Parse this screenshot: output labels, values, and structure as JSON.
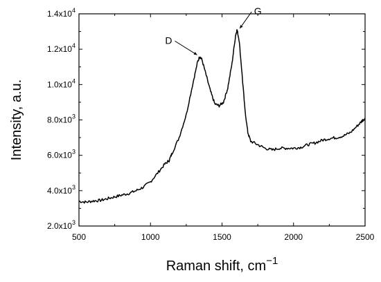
{
  "chart_data": {
    "type": "line",
    "title": "",
    "xlabel": "Raman shift, cm",
    "xlabel_superscript": "−1",
    "ylabel": "Intensity, a.u.",
    "xlim": [
      500,
      2500
    ],
    "ylim": [
      2000,
      14000
    ],
    "grid": false,
    "x_ticks": [
      500,
      1000,
      1500,
      2000,
      2500
    ],
    "x_tick_labels": [
      "500",
      "1000",
      "1500",
      "2000",
      "2500"
    ],
    "y_ticks": [
      2000,
      4000,
      6000,
      8000,
      10000,
      12000,
      14000
    ],
    "y_tick_labels": [
      {
        "mantissa": "2.0x10",
        "exp": "3"
      },
      {
        "mantissa": "4.0x10",
        "exp": "3"
      },
      {
        "mantissa": "6.0x10",
        "exp": "3"
      },
      {
        "mantissa": "8.0x10",
        "exp": "3"
      },
      {
        "mantissa": "1.0x10",
        "exp": "4"
      },
      {
        "mantissa": "1.2x10",
        "exp": "4"
      },
      {
        "mantissa": "1.4x10",
        "exp": "4"
      }
    ],
    "series": [
      {
        "color": "#000000",
        "points": [
          [
            500,
            3400
          ],
          [
            550,
            3350
          ],
          [
            600,
            3420
          ],
          [
            650,
            3450
          ],
          [
            700,
            3550
          ],
          [
            750,
            3650
          ],
          [
            800,
            3750
          ],
          [
            850,
            3850
          ],
          [
            900,
            4000
          ],
          [
            950,
            4200
          ],
          [
            1000,
            4500
          ],
          [
            1050,
            5000
          ],
          [
            1100,
            5500
          ],
          [
            1130,
            5700
          ],
          [
            1150,
            6100
          ],
          [
            1200,
            7000
          ],
          [
            1250,
            8300
          ],
          [
            1300,
            10200
          ],
          [
            1330,
            11300
          ],
          [
            1345,
            11600
          ],
          [
            1360,
            11400
          ],
          [
            1390,
            10500
          ],
          [
            1420,
            9600
          ],
          [
            1450,
            8900
          ],
          [
            1480,
            8800
          ],
          [
            1510,
            9000
          ],
          [
            1540,
            9800
          ],
          [
            1570,
            11200
          ],
          [
            1595,
            12800
          ],
          [
            1605,
            13100
          ],
          [
            1620,
            12500
          ],
          [
            1640,
            10600
          ],
          [
            1660,
            8600
          ],
          [
            1680,
            7300
          ],
          [
            1700,
            6800
          ],
          [
            1750,
            6600
          ],
          [
            1800,
            6400
          ],
          [
            1850,
            6300
          ],
          [
            1900,
            6400
          ],
          [
            1950,
            6400
          ],
          [
            2000,
            6400
          ],
          [
            2050,
            6450
          ],
          [
            2100,
            6600
          ],
          [
            2150,
            6700
          ],
          [
            2200,
            6850
          ],
          [
            2250,
            6950
          ],
          [
            2300,
            7000
          ],
          [
            2350,
            7100
          ],
          [
            2400,
            7300
          ],
          [
            2450,
            7700
          ],
          [
            2480,
            7950
          ],
          [
            2500,
            8100
          ]
        ]
      }
    ],
    "annotations": [
      {
        "label": "D",
        "x": 1345,
        "y": 11600
      },
      {
        "label": "G",
        "x": 1605,
        "y": 13100
      }
    ]
  }
}
